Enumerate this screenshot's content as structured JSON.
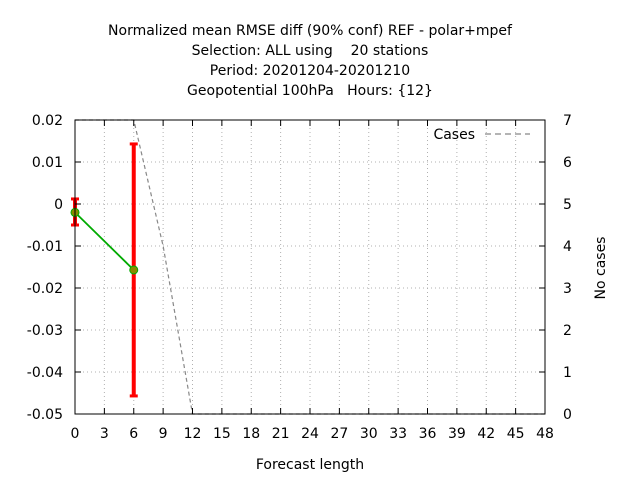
{
  "chart_data": {
    "type": "line",
    "title_lines": [
      "Normalized mean RMSE diff (90% conf) REF - polar+mpef",
      "Selection: ALL using    20 stations",
      "Period: 20201204-20201210",
      "Geopotential 100hPa   Hours: {12}"
    ],
    "xlabel": "Forecast length",
    "ylabel": "",
    "y2label": "No cases",
    "xlim": [
      0,
      48
    ],
    "ylim": [
      -0.05,
      0.02
    ],
    "y2lim": [
      0,
      7
    ],
    "xticks": [
      0,
      3,
      6,
      9,
      12,
      15,
      18,
      21,
      24,
      27,
      30,
      33,
      36,
      39,
      42,
      45,
      48
    ],
    "xtick_labels": [
      "0",
      "3",
      "6",
      "9",
      "12",
      "15",
      "18",
      "21",
      "24",
      "27",
      "30",
      "33",
      "36",
      "39",
      "42",
      "45",
      "48"
    ],
    "yticks": [
      0.02,
      0.01,
      0,
      -0.01,
      -0.02,
      -0.03,
      -0.04,
      -0.05
    ],
    "ytick_labels": [
      "0.02",
      "0.01",
      "0",
      "-0.01",
      "-0.02",
      "-0.03",
      "-0.04",
      "-0.05"
    ],
    "y2ticks": [
      7,
      6,
      5,
      4,
      3,
      2,
      1,
      0
    ],
    "y2tick_labels": [
      "7",
      "6",
      "5",
      "4",
      "3",
      "2",
      "1",
      "0"
    ],
    "grid": true,
    "series": [
      {
        "x": [
          0,
          6
        ],
        "values": [
          -0.002,
          -0.0157
        ],
        "ci_low": [
          -0.005,
          -0.0457
        ],
        "ci_high": [
          0.0012,
          0.0143
        ],
        "color": "#00aa00",
        "errorbar_color": "#ff0000",
        "marker_color": "#8a8a00"
      },
      {
        "name": "Cases",
        "axis": "y2",
        "style": "dashed",
        "color": "#888888",
        "x": [
          0,
          3,
          6,
          9,
          12,
          15,
          18,
          21,
          24,
          27,
          30,
          33,
          36,
          39,
          42,
          45,
          48
        ],
        "values": [
          7,
          7,
          7,
          4,
          0,
          0,
          0,
          0,
          0,
          0,
          0,
          0,
          0,
          0,
          0,
          0,
          0
        ]
      }
    ],
    "legend": {
      "entries": [
        "Cases"
      ],
      "position": "top-right"
    }
  }
}
